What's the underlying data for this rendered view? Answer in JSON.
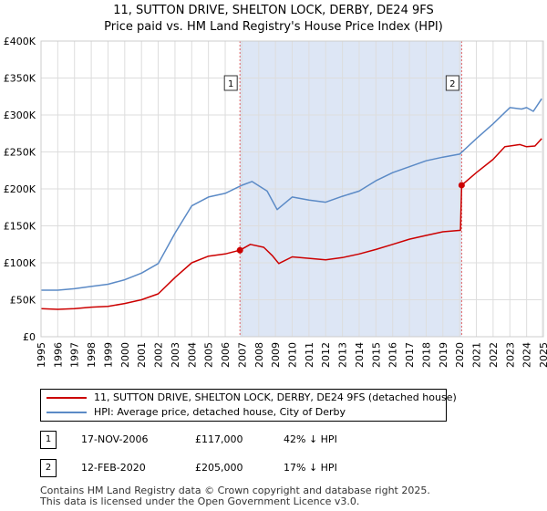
{
  "header": {
    "title_line1": "11, SUTTON DRIVE, SHELTON LOCK, DERBY, DE24 9FS",
    "title_line2": "Price paid vs. HM Land Registry's House Price Index (HPI)"
  },
  "chart_data": {
    "type": "line",
    "xlim": [
      1995,
      2025
    ],
    "ylim": [
      0,
      400000
    ],
    "x_ticks": [
      1995,
      1996,
      1997,
      1998,
      1999,
      2000,
      2001,
      2002,
      2003,
      2004,
      2005,
      2006,
      2007,
      2008,
      2009,
      2010,
      2011,
      2012,
      2013,
      2014,
      2015,
      2016,
      2017,
      2018,
      2019,
      2020,
      2021,
      2022,
      2023,
      2024,
      2025
    ],
    "y_ticks": [
      {
        "value": 0,
        "label": "£0"
      },
      {
        "value": 50000,
        "label": "£50K"
      },
      {
        "value": 100000,
        "label": "£100K"
      },
      {
        "value": 150000,
        "label": "£150K"
      },
      {
        "value": 200000,
        "label": "£200K"
      },
      {
        "value": 250000,
        "label": "£250K"
      },
      {
        "value": 300000,
        "label": "£300K"
      },
      {
        "value": 350000,
        "label": "£350K"
      },
      {
        "value": 400000,
        "label": "£400K"
      }
    ],
    "colors": {
      "property": "#cc0000",
      "hpi": "#5b8ac6",
      "shade": "#dde6f5",
      "vline": "#e06060",
      "grid": "#dddddd"
    },
    "series": [
      {
        "name": "11, SUTTON DRIVE, SHELTON LOCK, DERBY, DE24 9FS (detached house)",
        "color": "#cc0000",
        "points": [
          [
            1995,
            38000
          ],
          [
            1996,
            37000
          ],
          [
            1997,
            38000
          ],
          [
            1998,
            40000
          ],
          [
            1999,
            41000
          ],
          [
            2000,
            45000
          ],
          [
            2001,
            50000
          ],
          [
            2002,
            58000
          ],
          [
            2003,
            80000
          ],
          [
            2004,
            100000
          ],
          [
            2005,
            109000
          ],
          [
            2006,
            112000
          ],
          [
            2006.88,
            117000
          ],
          [
            2007.5,
            125000
          ],
          [
            2008.3,
            121000
          ],
          [
            2008.8,
            110000
          ],
          [
            2009.2,
            99000
          ],
          [
            2010,
            108000
          ],
          [
            2011,
            106000
          ],
          [
            2012,
            104000
          ],
          [
            2013,
            107000
          ],
          [
            2014,
            112000
          ],
          [
            2015,
            118000
          ],
          [
            2016,
            125000
          ],
          [
            2017,
            132000
          ],
          [
            2018,
            137000
          ],
          [
            2019,
            142000
          ],
          [
            2020.05,
            144000
          ],
          [
            2020.12,
            205000
          ],
          [
            2021,
            222000
          ],
          [
            2022,
            240000
          ],
          [
            2022.7,
            257000
          ],
          [
            2023,
            258000
          ],
          [
            2023.6,
            260000
          ],
          [
            2024,
            257000
          ],
          [
            2024.5,
            258000
          ],
          [
            2024.9,
            268000
          ]
        ]
      },
      {
        "name": "HPI: Average price, detached house, City of Derby",
        "color": "#5b8ac6",
        "points": [
          [
            1995,
            63000
          ],
          [
            1996,
            63000
          ],
          [
            1997,
            65000
          ],
          [
            1998,
            68000
          ],
          [
            1999,
            71000
          ],
          [
            2000,
            77000
          ],
          [
            2001,
            86000
          ],
          [
            2002,
            99000
          ],
          [
            2003,
            140000
          ],
          [
            2004,
            177000
          ],
          [
            2005,
            189000
          ],
          [
            2006,
            194000
          ],
          [
            2007,
            205000
          ],
          [
            2007.6,
            210000
          ],
          [
            2008.5,
            197000
          ],
          [
            2009.1,
            172000
          ],
          [
            2010,
            189000
          ],
          [
            2011,
            185000
          ],
          [
            2012,
            182000
          ],
          [
            2013,
            190000
          ],
          [
            2014,
            197000
          ],
          [
            2015,
            211000
          ],
          [
            2016,
            222000
          ],
          [
            2017,
            230000
          ],
          [
            2018,
            238000
          ],
          [
            2019,
            243000
          ],
          [
            2020,
            247000
          ],
          [
            2021,
            268000
          ],
          [
            2022,
            288000
          ],
          [
            2023,
            310000
          ],
          [
            2023.7,
            308000
          ],
          [
            2024,
            310000
          ],
          [
            2024.4,
            305000
          ],
          [
            2024.9,
            322000
          ]
        ]
      }
    ],
    "sales": [
      {
        "label": "1",
        "x": 2006.88,
        "y": 117000
      },
      {
        "label": "2",
        "x": 2020.12,
        "y": 205000
      }
    ]
  },
  "legend": {
    "property_label": "11, SUTTON DRIVE, SHELTON LOCK, DERBY, DE24 9FS (detached house)",
    "hpi_label": "HPI: Average price, detached house, City of Derby"
  },
  "sales_table": [
    {
      "num": "1",
      "date": "17-NOV-2006",
      "price": "£117,000",
      "hpi": "42% ↓ HPI"
    },
    {
      "num": "2",
      "date": "12-FEB-2020",
      "price": "£205,000",
      "hpi": "17% ↓ HPI"
    }
  ],
  "footer": {
    "line1": "Contains HM Land Registry data © Crown copyright and database right 2025.",
    "line2": "This data is licensed under the Open Government Licence v3.0."
  }
}
